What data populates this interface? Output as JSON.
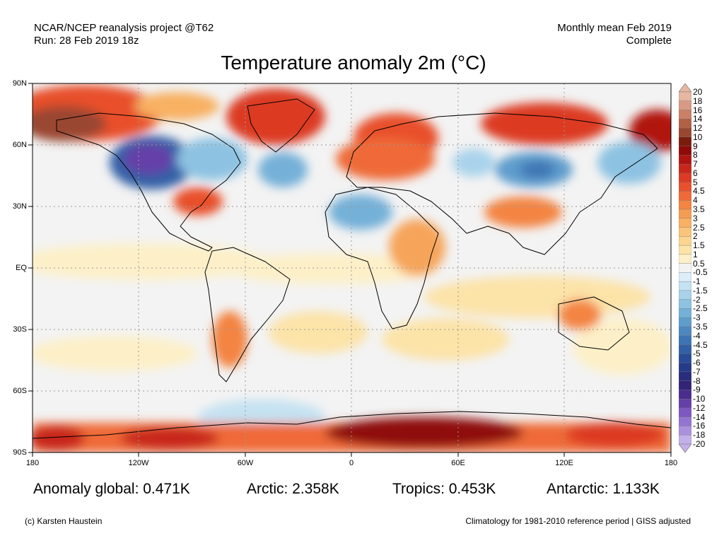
{
  "header": {
    "source": "NCAR/NCEP reanalysis project @T62",
    "run": "Run: 28 Feb 2019 18z",
    "period": "Monthly mean Feb 2019",
    "status": "Complete"
  },
  "title": "Temperature anomaly 2m (°C)",
  "map": {
    "projection": "equirectangular",
    "lat_labels": [
      "90N",
      "60N",
      "30N",
      "EQ",
      "30S",
      "60S",
      "90S"
    ],
    "lon_labels": [
      "180",
      "120W",
      "60W",
      "0",
      "60E",
      "120E",
      "180"
    ],
    "gridlines": "dotted",
    "coastlines": true,
    "anomaly_regions": [
      {
        "region": "Alaska / Bering",
        "anomaly": "warm",
        "level": 6
      },
      {
        "region": "Greenland",
        "anomaly": "warm",
        "level": 5
      },
      {
        "region": "Western Canada / NW USA",
        "anomaly": "cold",
        "level": -10
      },
      {
        "region": "Eastern Canada",
        "anomaly": "cold",
        "level": -3
      },
      {
        "region": "SE USA",
        "anomaly": "warm",
        "level": 4
      },
      {
        "region": "Scandinavia / Europe",
        "anomaly": "warm",
        "level": 5
      },
      {
        "region": "North Africa",
        "anomaly": "cold",
        "level": -2
      },
      {
        "region": "Central Siberia",
        "anomaly": "cold",
        "level": -4
      },
      {
        "region": "Eastern Siberia",
        "anomaly": "warm",
        "level": 6
      },
      {
        "region": "China / Tibet",
        "anomaly": "warm",
        "level": 4
      },
      {
        "region": "Patagonia",
        "anomaly": "warm",
        "level": 3
      },
      {
        "region": "Australia",
        "anomaly": "warm",
        "level": 3
      },
      {
        "region": "Antarctica",
        "anomaly": "warm",
        "level": 7
      }
    ]
  },
  "colorbar": {
    "labels": [
      "20",
      "18",
      "16",
      "14",
      "12",
      "10",
      "9",
      "8",
      "7",
      "6",
      "5",
      "4.5",
      "4",
      "3.5",
      "3",
      "2.5",
      "2",
      "1.5",
      "1",
      "0.5",
      "-0.5",
      "-1",
      "-1.5",
      "-2",
      "-2.5",
      "-3",
      "-3.5",
      "-4",
      "-4.5",
      "-5",
      "-6",
      "-7",
      "-8",
      "-9",
      "-10",
      "-12",
      "-14",
      "-16",
      "-18",
      "-20"
    ],
    "colors": [
      "#e7b7a3",
      "#d89a86",
      "#c98067",
      "#b16146",
      "#9a4731",
      "#7a1d0d",
      "#8f0a08",
      "#b01410",
      "#c8261a",
      "#dc3a22",
      "#e8502c",
      "#ef6a38",
      "#f38442",
      "#f69c52",
      "#f8b062",
      "#fac47a",
      "#fbd590",
      "#fce3a8",
      "#fdf0c8",
      "#f3f3f3",
      "#dceef9",
      "#c5e2f2",
      "#a9d3eb",
      "#8dc2e2",
      "#74b0d8",
      "#5f9dcd",
      "#4d89c1",
      "#3e74b3",
      "#3260a6",
      "#2a4b98",
      "#263a8a",
      "#2a2c7e",
      "#332477",
      "#4a2d8e",
      "#6540a8",
      "#7d58c0",
      "#9474d2",
      "#ab90dd",
      "#c4b0e8"
    ],
    "unit": "°C"
  },
  "stats": {
    "global": "Anomaly global: 0.471K",
    "arctic": "Arctic: 2.358K",
    "tropics": "Tropics: 0.453K",
    "antarctic": "Antarctic: 1.133K"
  },
  "footer": {
    "credit": "(c) Karsten Haustein",
    "note": "Climatology for 1981-2010 reference period | GISS adjusted"
  }
}
